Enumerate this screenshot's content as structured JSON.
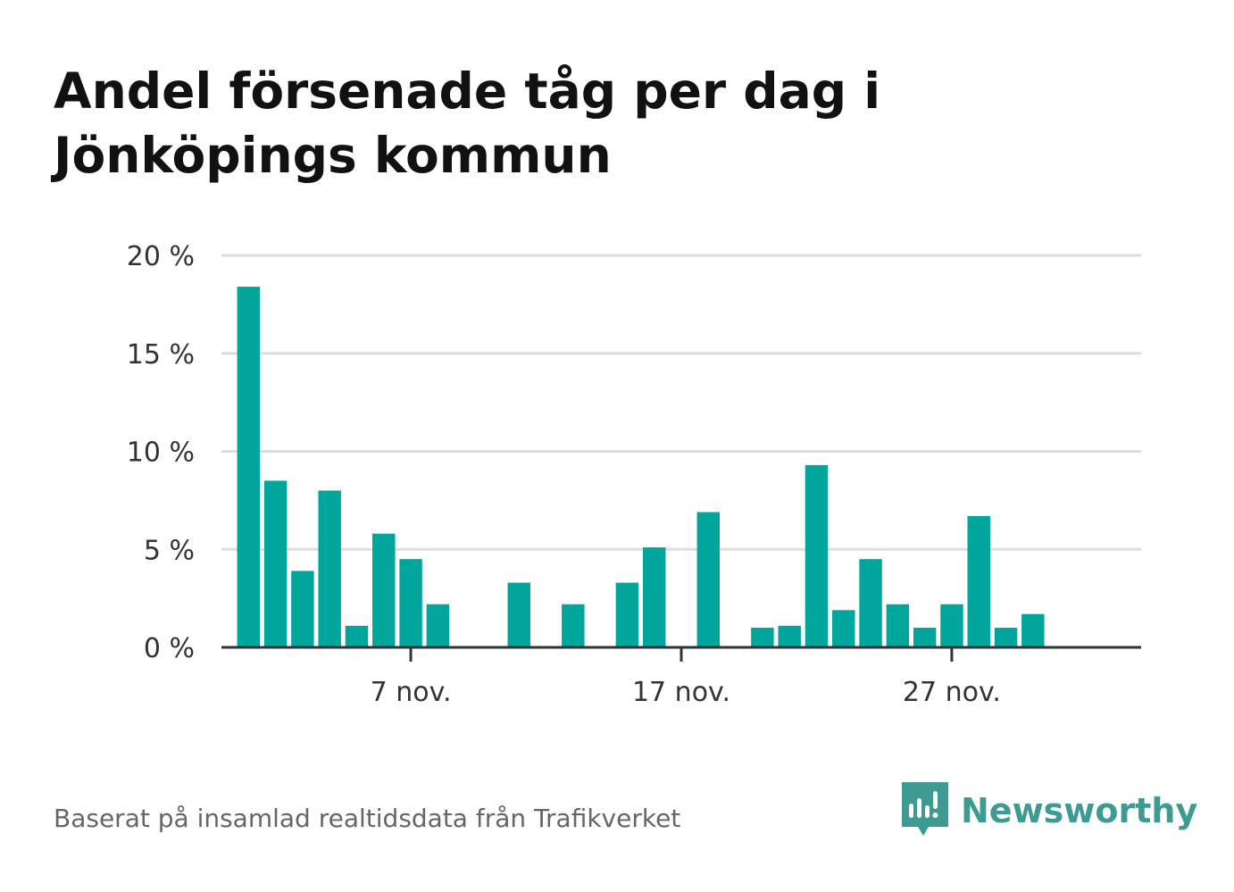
{
  "title": "Andel försenade tåg per dag i Jönköpings kommun",
  "footer": {
    "source": "Baserat på insamlad realtidsdata från Trafikverket",
    "brand": "Newsworthy"
  },
  "colors": {
    "bar": "#00a59b",
    "grid": "#dddddd",
    "axis": "#333333",
    "brand": "#3d9b91"
  },
  "chart_data": {
    "type": "bar",
    "title": "Andel försenade tåg per dag i Jönköpings kommun",
    "xlabel": "",
    "ylabel": "",
    "ylim": [
      0,
      20
    ],
    "grid": true,
    "y_ticks": [
      {
        "value": 0,
        "label": "0 %"
      },
      {
        "value": 5,
        "label": "5 %"
      },
      {
        "value": 10,
        "label": "10 %"
      },
      {
        "value": 15,
        "label": "15 %"
      },
      {
        "value": 20,
        "label": "20 %"
      }
    ],
    "x_ticks": [
      {
        "day": 7,
        "label": "7 nov."
      },
      {
        "day": 17,
        "label": "17 nov."
      },
      {
        "day": 27,
        "label": "27 nov."
      }
    ],
    "x_range": [
      0,
      34
    ],
    "days": [
      1,
      2,
      3,
      4,
      5,
      6,
      7,
      8,
      9,
      10,
      11,
      12,
      13,
      14,
      15,
      16,
      17,
      18,
      19,
      20,
      21,
      22,
      23,
      24,
      25,
      26,
      27,
      28,
      29,
      30
    ],
    "values": [
      18.4,
      8.5,
      3.9,
      8.0,
      1.1,
      5.8,
      4.5,
      2.2,
      0,
      0,
      3.3,
      0,
      2.2,
      0,
      3.3,
      5.1,
      0,
      6.9,
      0,
      1.0,
      1.1,
      9.3,
      1.9,
      4.5,
      2.2,
      1.0,
      2.2,
      6.7,
      1.0,
      1.7
    ]
  }
}
